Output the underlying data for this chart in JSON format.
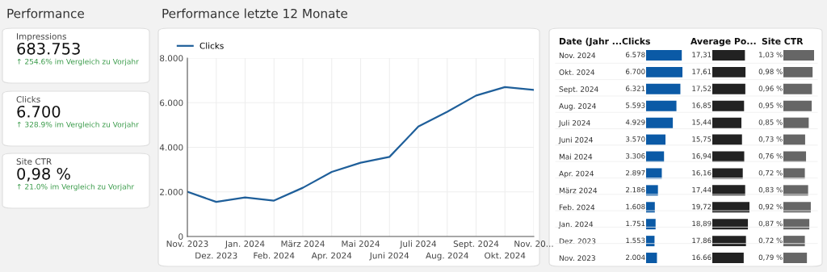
{
  "chart_data": [
    {
      "type": "other",
      "title": "Performance",
      "annotations": [
        "Impressions",
        "683.753",
        "↑ 254.6% im Vergleich zu Vorjahr",
        "Clicks",
        "6.700",
        "↑ 328.9% im Vergleich zu Vorjahr",
        "Site CTR",
        "0,98 %",
        "↑ 21.0% im Vergleich zu Vorjahr"
      ]
    },
    {
      "type": "line",
      "title": "Performance letzte 12 Monate",
      "categories": [
        "Nov. 2023",
        "Dez. 2023",
        "Jan. 2024",
        "Feb. 2024",
        "März 2024",
        "Apr. 2024",
        "Mai 2024",
        "Juni 2024",
        "Juli 2024",
        "Aug. 2024",
        "Sept. 2024",
        "Okt. 2024",
        "Nov. 20..."
      ],
      "series": [
        {
          "name": "Clicks",
          "color": "#1f5f9a",
          "values": [
            2004,
            1553,
            1751,
            1608,
            2186,
            2897,
            3306,
            3570,
            4929,
            5593,
            6321,
            6700,
            6578
          ]
        }
      ],
      "ylim": [
        0,
        8000
      ],
      "yticks": [
        0,
        {
          "value": 2000,
          "label": "2.000"
        },
        {
          "value": 4000,
          "label": "4.000"
        },
        {
          "value": 6000,
          "label": "6.000"
        },
        {
          "value": 8000,
          "label": "8.000"
        }
      ],
      "grid": true,
      "legend": "top left",
      "marker": "none",
      "line_style": "solid"
    },
    {
      "type": "bar",
      "orientation": "horizontal",
      "title": "Clicks",
      "ylabel": "Date (Jahr ...",
      "categories": [
        "Nov. 2024",
        "Okt. 2024",
        "Sept. 2024",
        "Aug. 2024",
        "Juli 2024",
        "Juni 2024",
        "Mai 2024",
        "Apr. 2024",
        "März 2024",
        "Feb. 2024",
        "Jan. 2024",
        "Dez. 2023",
        "Nov. 2023"
      ],
      "color": "#0b5aa6",
      "values": [
        6578,
        6700,
        6321,
        5593,
        4929,
        3570,
        3306,
        2897,
        2186,
        1608,
        1751,
        1553,
        2004
      ],
      "value_labels": [
        "6.578",
        "6.700",
        "6.321",
        "5.593",
        "4.929",
        "3.570",
        "3.306",
        "2.897",
        "2.186",
        "1.608",
        "1.751",
        "1.553",
        "2.004"
      ]
    },
    {
      "type": "bar",
      "orientation": "horizontal",
      "title": "Average Po...",
      "tick_labels": false,
      "categories": [
        null,
        null,
        null,
        null,
        null,
        null,
        null,
        null,
        null,
        null,
        null,
        null,
        null
      ],
      "color": "#222222",
      "values": [
        17.31,
        17.61,
        17.52,
        16.85,
        15.44,
        15.75,
        16.94,
        16.16,
        17.44,
        19.72,
        18.89,
        17.86,
        16.66
      ],
      "value_labels": [
        "17,31",
        "17,61",
        "17,52",
        "16,85",
        "15,44",
        "15,75",
        "16,94",
        "16,16",
        "17,44",
        "19,72",
        "18,89",
        "17,86",
        "16.66"
      ]
    },
    {
      "type": "bar",
      "orientation": "horizontal",
      "title": "Site CTR",
      "tick_labels": false,
      "categories": [
        null,
        null,
        null,
        null,
        null,
        null,
        null,
        null,
        null,
        null,
        null,
        null,
        null
      ],
      "color": "#666666",
      "values": [
        1.03,
        0.98,
        0.96,
        0.95,
        0.85,
        0.73,
        0.76,
        0.72,
        0.83,
        0.92,
        0.87,
        0.72,
        0.79
      ],
      "value_labels": [
        "1,03 %",
        "0,98 %",
        "0,96 %",
        "0,95 %",
        "0,85 %",
        "0,73 %",
        "0,76 %",
        "0,72 %",
        "0,83 %",
        "0,92 %",
        "0,87 %",
        "0,72 %",
        "0,79 %"
      ]
    }
  ]
}
